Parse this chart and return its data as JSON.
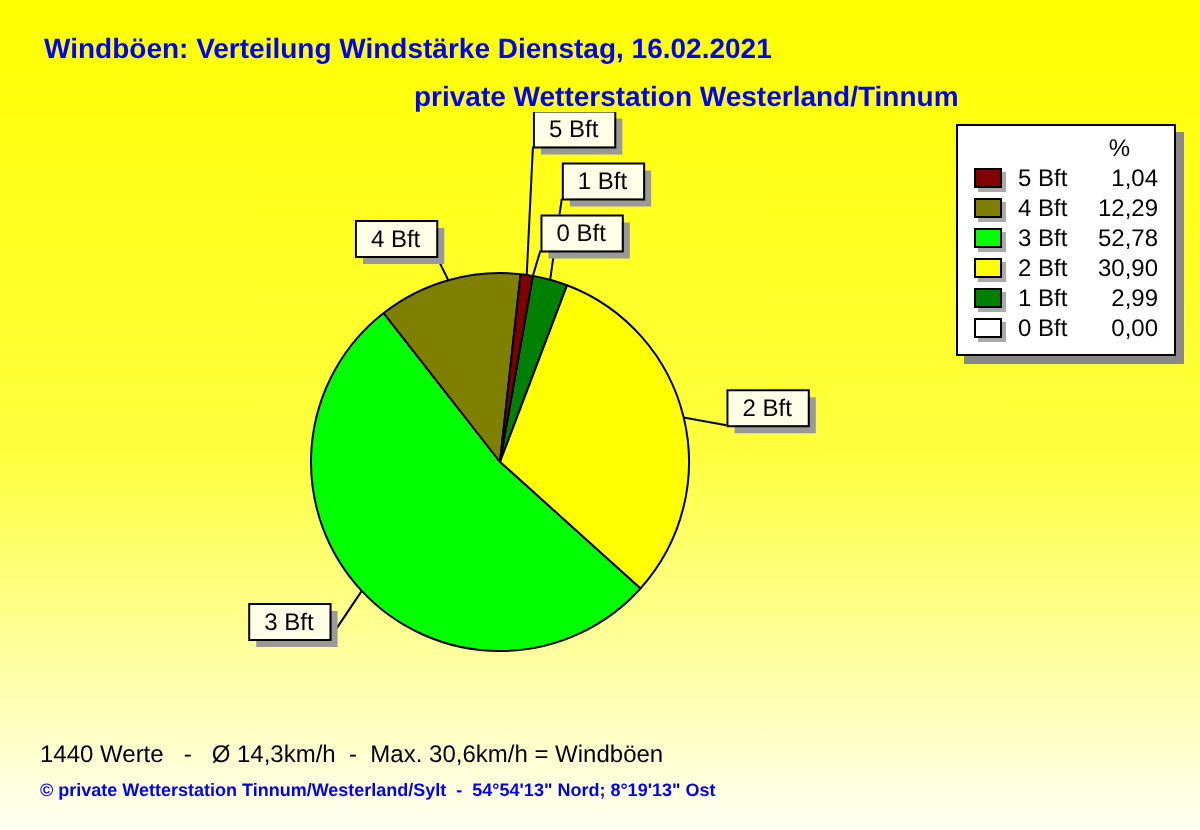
{
  "chart_data": {
    "type": "pie",
    "title": "Windböen: Verteilung Windstärke  Dienstag, 16.02.2021",
    "subtitle": "private Wetterstation Westerland/Tinnum",
    "categories": [
      "5 Bft",
      "4 Bft",
      "3 Bft",
      "2 Bft",
      "1 Bft",
      "0 Bft"
    ],
    "values": [
      1.04,
      12.29,
      52.78,
      30.9,
      2.99,
      0.0
    ],
    "value_labels": [
      "1,04",
      "12,29",
      "52,78",
      "30,90",
      "2,99",
      "0,00"
    ],
    "colors": [
      "#800000",
      "#808000",
      "#00ff00",
      "#ffff00",
      "#008000",
      "#ffffff"
    ],
    "legend_title": "%",
    "legend": "top right",
    "annotations": [
      "1440 Werte   -   Ø 14,3km/h  -  Max. 30,6km/h = Windböen",
      "© private Wetterstation Tinnum/Westerland/Sylt  -  54°54'13\" Nord; 8°19'13\" Ost"
    ]
  }
}
